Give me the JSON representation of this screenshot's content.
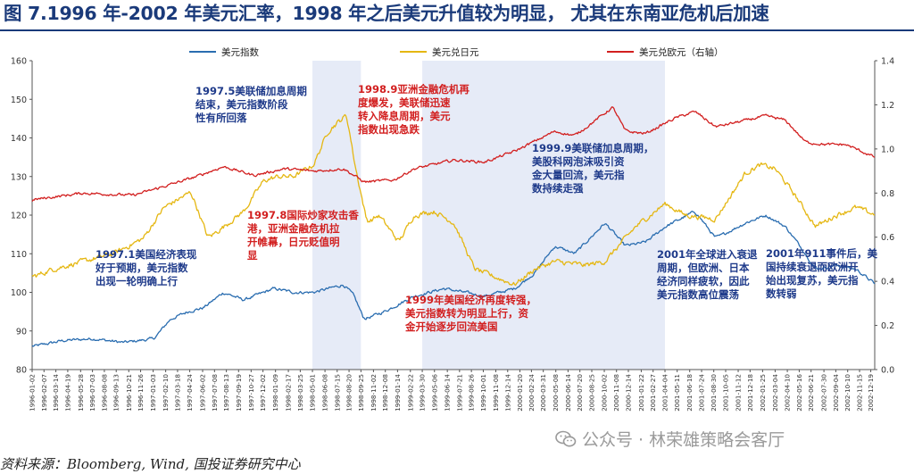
{
  "title": "图 7.1996 年-2002 年美元汇率，1998 年之后美元升值较为明显， 尤其在东南亚危机后加速",
  "source": "资料来源：Bloomberg, Wind, 国投证券研究中心",
  "watermark": "公众号 · 林荣雄策略会客厅",
  "colors": {
    "dxy": "#2a6db0",
    "jpy": "#e5b712",
    "eur": "#d21f1f",
    "shade": "#e6ebf7",
    "annot_blue": "#1e3a8a",
    "annot_red": "#d21f1f",
    "title": "#1a3a7a"
  },
  "chart_data": {
    "type": "line",
    "title": "",
    "y_left": {
      "min": 80,
      "max": 160,
      "ticks": [
        80,
        90,
        100,
        110,
        120,
        130,
        140,
        150,
        160
      ]
    },
    "y_right": {
      "min": 0,
      "max": 1.4,
      "ticks": [
        "0.0",
        "0.2",
        "0.4",
        "0.6",
        "0.8",
        "1.0",
        "1.2",
        "1.4"
      ]
    },
    "x_range": [
      "1996-01-02",
      "2002-12-31"
    ],
    "x_ticks": [
      "1996-01-02",
      "1996-02-07",
      "1996-03-14",
      "1996-04-19",
      "1996-05-28",
      "1996-07-03",
      "1996-08-08",
      "1996-09-13",
      "1996-10-21",
      "1996-11-26",
      "1997-01-03",
      "1997-02-10",
      "1997-03-18",
      "1997-04-24",
      "1997-06-02",
      "1997-07-08",
      "1997-08-13",
      "1997-09-19",
      "1997-10-27",
      "1997-12-02",
      "1998-01-09",
      "1998-02-17",
      "1998-03-25",
      "1998-05-01",
      "1998-06-08",
      "1998-07-15",
      "1998-08-20",
      "1998-09-25",
      "1998-11-02",
      "1998-12-08",
      "1999-01-14",
      "1999-02-22",
      "1999-03-30",
      "1999-05-06",
      "1999-06-14",
      "1999-07-21",
      "1999-08-26",
      "1999-10-01",
      "1999-11-08",
      "1999-12-14",
      "2000-01-20",
      "2000-02-24",
      "2000-03-31",
      "2000-05-08",
      "2000-06-14",
      "2000-07-20",
      "2000-08-25",
      "2000-10-02",
      "2000-11-08",
      "2000-12-14",
      "2001-01-22",
      "2001-02-27",
      "2001-04-04",
      "2001-05-11",
      "2001-06-18",
      "2001-07-24",
      "2001-08-30",
      "2001-10-05",
      "2001-11-12",
      "2001-12-18",
      "2002-01-25",
      "2002-03-04",
      "2002-04-10",
      "2002-05-16",
      "2002-06-21",
      "2002-07-30",
      "2002-09-04",
      "2002-10-10",
      "2002-11-15",
      "2002-12-19"
    ],
    "shaded_periods": [
      [
        "1998-05-01",
        "1998-09-25"
      ],
      [
        "1999-03-30",
        "2001-04-04"
      ]
    ],
    "series": [
      {
        "name": "美元指数",
        "axis": "left",
        "color": "#2a6db0",
        "points": [
          [
            "1996-01-02",
            86
          ],
          [
            "1996-04-01",
            87.5
          ],
          [
            "1996-07-01",
            88
          ],
          [
            "1996-10-01",
            87
          ],
          [
            "1997-01-02",
            88
          ],
          [
            "1997-02-20",
            93
          ],
          [
            "1997-04-15",
            95
          ],
          [
            "1997-06-01",
            96
          ],
          [
            "1997-08-01",
            100
          ],
          [
            "1997-10-01",
            98
          ],
          [
            "1998-01-01",
            101
          ],
          [
            "1998-03-01",
            100
          ],
          [
            "1998-05-01",
            100
          ],
          [
            "1998-08-01",
            102
          ],
          [
            "1998-09-01",
            99
          ],
          [
            "1998-10-01",
            93
          ],
          [
            "1998-12-01",
            95
          ],
          [
            "1999-03-01",
            99
          ],
          [
            "1999-06-01",
            101
          ],
          [
            "1999-08-01",
            100
          ],
          [
            "1999-10-01",
            99
          ],
          [
            "2000-01-01",
            101
          ],
          [
            "2000-03-01",
            105
          ],
          [
            "2000-05-01",
            112
          ],
          [
            "2000-07-01",
            110
          ],
          [
            "2000-10-01",
            118
          ],
          [
            "2000-12-01",
            112
          ],
          [
            "2001-02-01",
            113
          ],
          [
            "2001-04-01",
            117
          ],
          [
            "2001-07-01",
            121
          ],
          [
            "2001-09-01",
            114
          ],
          [
            "2001-12-01",
            118
          ],
          [
            "2002-02-01",
            120
          ],
          [
            "2002-04-01",
            117
          ],
          [
            "2002-06-01",
            110
          ],
          [
            "2002-07-01",
            106
          ],
          [
            "2002-09-01",
            107
          ],
          [
            "2002-11-01",
            106
          ],
          [
            "2002-12-31",
            102
          ]
        ]
      },
      {
        "name": "美元兑日元",
        "axis": "left",
        "color": "#e5b712",
        "points": [
          [
            "1996-01-02",
            104
          ],
          [
            "1996-03-01",
            106
          ],
          [
            "1996-06-01",
            108
          ],
          [
            "1996-09-01",
            110
          ],
          [
            "1996-12-01",
            114
          ],
          [
            "1997-02-01",
            122
          ],
          [
            "1997-04-25",
            126
          ],
          [
            "1997-06-15",
            114
          ],
          [
            "1997-08-01",
            117
          ],
          [
            "1997-10-01",
            121
          ],
          [
            "1997-12-01",
            129
          ],
          [
            "1998-01-15",
            130
          ],
          [
            "1998-03-01",
            130
          ],
          [
            "1998-05-01",
            133
          ],
          [
            "1998-06-15",
            142
          ],
          [
            "1998-08-10",
            146
          ],
          [
            "1998-09-01",
            134
          ],
          [
            "1998-10-10",
            118
          ],
          [
            "1998-11-15",
            120
          ],
          [
            "1999-01-15",
            113
          ],
          [
            "1999-03-01",
            120
          ],
          [
            "1999-05-01",
            121
          ],
          [
            "1999-07-01",
            118
          ],
          [
            "1999-09-01",
            106
          ],
          [
            "1999-11-01",
            104
          ],
          [
            "2000-01-01",
            102
          ],
          [
            "2000-03-01",
            106
          ],
          [
            "2000-05-01",
            108
          ],
          [
            "2000-08-01",
            107
          ],
          [
            "2000-10-01",
            108
          ],
          [
            "2001-01-01",
            117
          ],
          [
            "2001-04-01",
            123
          ],
          [
            "2001-06-01",
            120
          ],
          [
            "2001-09-01",
            119
          ],
          [
            "2001-12-01",
            131
          ],
          [
            "2002-01-15",
            133
          ],
          [
            "2002-03-01",
            132
          ],
          [
            "2002-05-01",
            125
          ],
          [
            "2002-07-01",
            117
          ],
          [
            "2002-09-01",
            120
          ],
          [
            "2002-11-01",
            122
          ],
          [
            "2002-12-31",
            120
          ]
        ]
      },
      {
        "name": "美元兑欧元（右轴）",
        "axis": "right",
        "color": "#d21f1f",
        "points": [
          [
            "1996-01-02",
            0.77
          ],
          [
            "1996-06-01",
            0.8
          ],
          [
            "1996-11-01",
            0.79
          ],
          [
            "1997-02-01",
            0.83
          ],
          [
            "1997-05-01",
            0.87
          ],
          [
            "1997-08-01",
            0.92
          ],
          [
            "1997-11-01",
            0.88
          ],
          [
            "1998-02-01",
            0.91
          ],
          [
            "1998-05-01",
            0.9
          ],
          [
            "1998-08-01",
            0.91
          ],
          [
            "1998-10-01",
            0.85
          ],
          [
            "1999-01-01",
            0.86
          ],
          [
            "1999-03-01",
            0.91
          ],
          [
            "1999-07-01",
            0.95
          ],
          [
            "1999-10-01",
            0.94
          ],
          [
            "2000-01-01",
            0.99
          ],
          [
            "2000-05-01",
            1.08
          ],
          [
            "2000-07-01",
            1.06
          ],
          [
            "2000-10-25",
            1.19
          ],
          [
            "2000-12-01",
            1.08
          ],
          [
            "2001-02-01",
            1.07
          ],
          [
            "2001-05-01",
            1.14
          ],
          [
            "2001-07-01",
            1.17
          ],
          [
            "2001-09-01",
            1.1
          ],
          [
            "2001-11-01",
            1.12
          ],
          [
            "2002-02-01",
            1.15
          ],
          [
            "2002-04-01",
            1.13
          ],
          [
            "2002-06-01",
            1.03
          ],
          [
            "2002-08-01",
            1.02
          ],
          [
            "2002-10-01",
            1.02
          ],
          [
            "2002-12-31",
            0.96
          ]
        ]
      }
    ],
    "legend": [
      "美元指数",
      "美元兑日元",
      "美元兑欧元（右轴）"
    ],
    "annotations": [
      {
        "color": "blue",
        "lines": [
          "1997.5美联储加息周期",
          "结束，美元指数阶段",
          "性有所回落"
        ]
      },
      {
        "color": "red",
        "lines": [
          "1998.9亚洲金融危机再",
          "度爆发，美联储迅速",
          "转入降息周期，美元",
          "指数出现急跌"
        ]
      },
      {
        "color": "red",
        "lines": [
          "1997.8国际炒家攻击香",
          "港，亚洲金融危机拉",
          "开帷幕，日元贬值明",
          "显"
        ]
      },
      {
        "color": "blue",
        "lines": [
          "1997.1美国经济表现",
          "好于预期，美元指数",
          "出现一轮明确上行"
        ]
      },
      {
        "color": "blue",
        "lines": [
          "1999.9美联储加息周期，",
          "美股科网泡沫吸引资",
          "金大量回流，美元指",
          "数持续走强"
        ]
      },
      {
        "color": "red",
        "lines": [
          "1999年美国经济再度转强，",
          "美元指数转为明显上行，资",
          "金开始逐步回流美国"
        ]
      },
      {
        "color": "blue",
        "lines": [
          "2001年全球进入衰退",
          "周期，但欧洲、日本",
          "经济同样疲软，因此",
          "美元指数高位震荡"
        ]
      },
      {
        "color": "blue",
        "lines": [
          "2001年911事件后，美",
          "国持续衰退而欧洲开",
          "始出现复苏，美元指",
          "数转弱"
        ]
      }
    ]
  }
}
